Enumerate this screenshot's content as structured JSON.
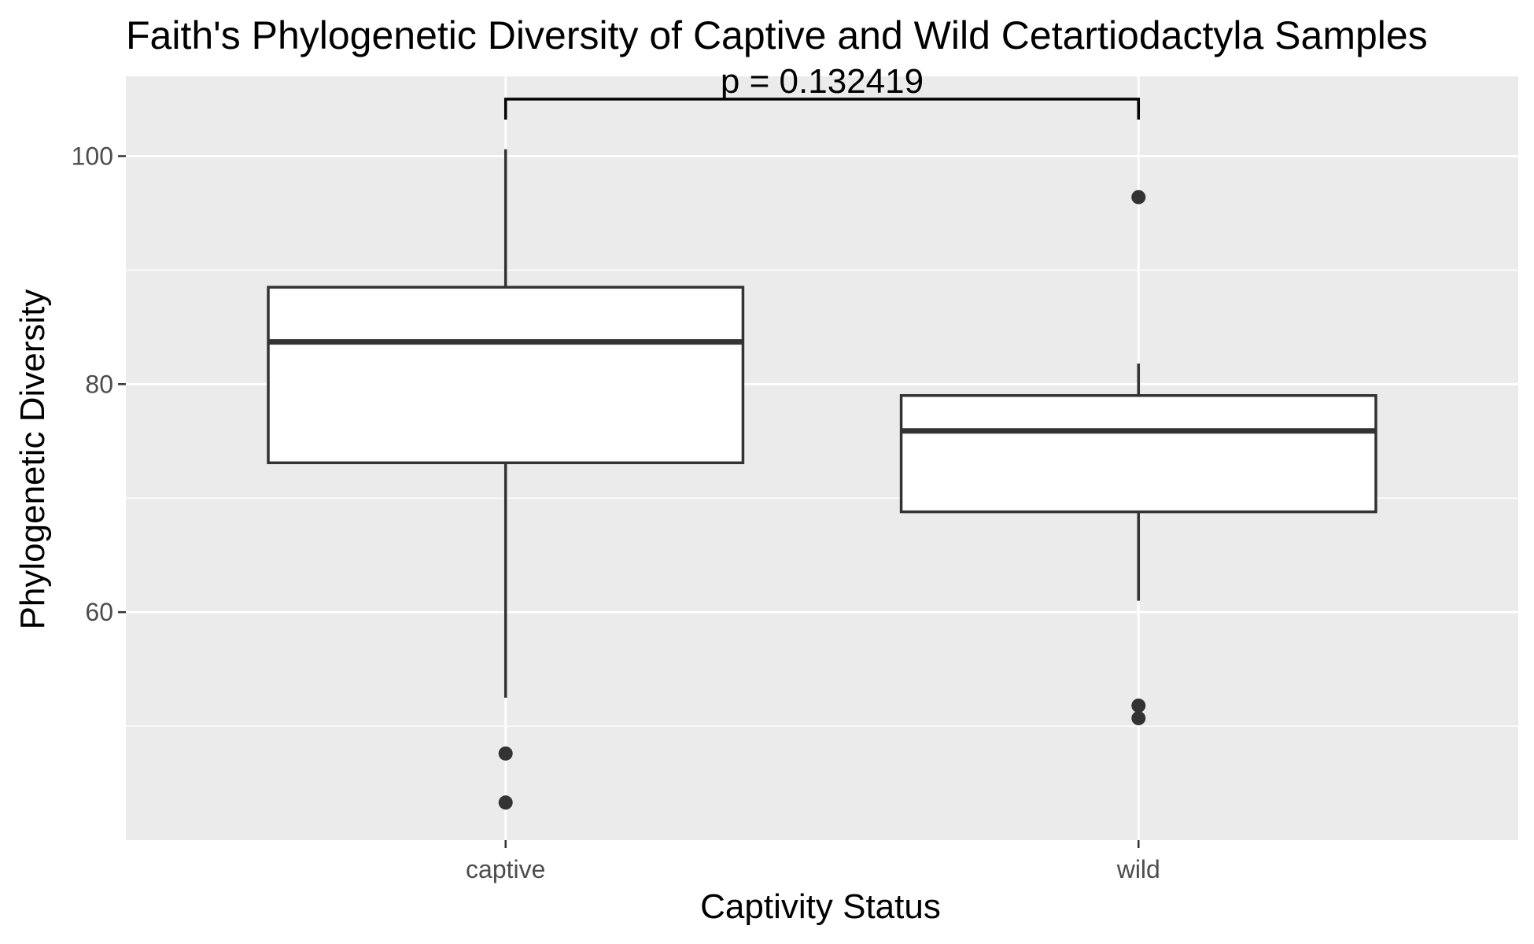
{
  "chart_data": {
    "type": "box",
    "title": "Faith's Phylogenetic Diversity of Captive and Wild Cetartiodactyla Samples",
    "xlabel": "Captivity Status",
    "ylabel": "Phylogenetic Diversity",
    "categories": [
      "captive",
      "wild"
    ],
    "ylim": [
      40,
      107
    ],
    "y_ticks": [
      60,
      80,
      100
    ],
    "y_tick_labels": [
      "60",
      "80",
      "100"
    ],
    "grid": true,
    "boxes": [
      {
        "category": "captive",
        "whisker_low": 52.5,
        "q1": 73.1,
        "median": 83.7,
        "q3": 88.5,
        "whisker_high": 100.6,
        "outliers": [
          47.6,
          43.3
        ]
      },
      {
        "category": "wild",
        "whisker_low": 61.0,
        "q1": 68.8,
        "median": 75.9,
        "q3": 79.0,
        "whisker_high": 81.8,
        "outliers": [
          96.4,
          51.8,
          50.7
        ]
      }
    ],
    "annotation": {
      "text": "p = 0.132419",
      "between": [
        "captive",
        "wild"
      ],
      "y": 105
    },
    "colors": {
      "panel": "#ebebeb",
      "grid": "#ffffff",
      "box_fill": "#ffffff",
      "box_line": "#333333",
      "bracket": "#000000"
    }
  }
}
